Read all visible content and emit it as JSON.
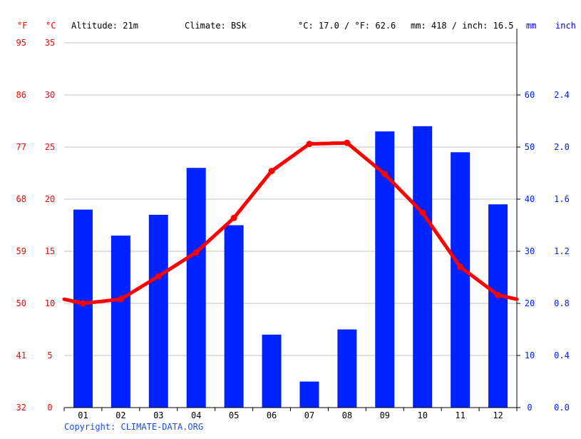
{
  "header": {
    "unit_f": "°F",
    "unit_c": "°C",
    "altitude": "Altitude: 21m",
    "climate": "Climate: BSk",
    "temp_avg": "°C: 17.0 / °F: 62.6",
    "precip_total": "mm: 418 / inch: 16.5",
    "unit_mm": "mm",
    "unit_inch": "inch"
  },
  "footer": {
    "copyright": "Copyright: CLIMATE-DATA.ORG"
  },
  "colors": {
    "temperature": "#ff0000",
    "precipitation": "#0022ff",
    "grid": "#c0c0c0",
    "axis": "#000000",
    "copyright": "#1a4de6"
  },
  "chart_data": {
    "type": "bar+line",
    "categories": [
      "01",
      "02",
      "03",
      "04",
      "05",
      "06",
      "07",
      "08",
      "09",
      "10",
      "11",
      "12"
    ],
    "series": [
      {
        "type": "bar",
        "axis": "precipitation_mm",
        "values": [
          38,
          33,
          37,
          46,
          35,
          14,
          5,
          15,
          53,
          54,
          49,
          39
        ]
      },
      {
        "type": "line",
        "axis": "temperature_c",
        "values": [
          10.0,
          10.4,
          12.6,
          14.9,
          18.2,
          22.7,
          25.3,
          25.4,
          22.4,
          18.7,
          13.5,
          10.8
        ]
      }
    ],
    "temperature_edge_values": [
      10.4,
      10.4
    ],
    "left_axis_c": {
      "range": [
        0,
        35
      ],
      "ticks": [
        "0",
        "5",
        "10",
        "15",
        "20",
        "25",
        "30",
        "35"
      ]
    },
    "left_axis_f": {
      "ticks": [
        "32",
        "41",
        "50",
        "59",
        "68",
        "77",
        "86",
        "95"
      ]
    },
    "right_axis_mm": {
      "range": [
        0,
        70
      ],
      "ticks": [
        "0",
        "10",
        "20",
        "30",
        "40",
        "50",
        "60"
      ]
    },
    "right_axis_inch": {
      "ticks": [
        "0.0",
        "0.4",
        "0.8",
        "1.2",
        "1.6",
        "2.0",
        "2.4"
      ]
    },
    "grid": true
  }
}
